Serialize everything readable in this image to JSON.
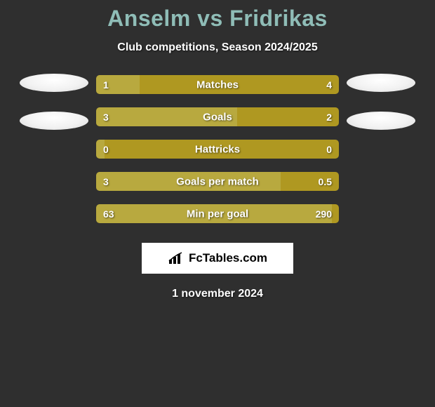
{
  "title": "Anselm vs Fridrikas",
  "subtitle": "Club competitions, Season 2024/2025",
  "footer_date": "1 november 2024",
  "branding": {
    "text": "FcTables.com",
    "icon": "bar-chart-icon"
  },
  "colors": {
    "background": "#2f2f2f",
    "title": "#8fbdb7",
    "text": "#ffffff",
    "bar_left": "#b8a93f",
    "bar_right": "#af9821",
    "oval": "#f2f2f2",
    "branding_bg": "#ffffff",
    "branding_text": "#000000"
  },
  "bars": [
    {
      "label": "Matches",
      "left_val": "1",
      "right_val": "4",
      "left_pct": 18,
      "label_center_pct": 50
    },
    {
      "label": "Goals",
      "left_val": "3",
      "right_val": "2",
      "left_pct": 58,
      "label_center_pct": 50
    },
    {
      "label": "Hattricks",
      "left_val": "0",
      "right_val": "0",
      "left_pct": 3.5,
      "label_center_pct": 50
    },
    {
      "label": "Goals per match",
      "left_val": "3",
      "right_val": "0.5",
      "left_pct": 76,
      "label_center_pct": 50
    },
    {
      "label": "Min per goal",
      "left_val": "63",
      "right_val": "290",
      "left_pct": 97,
      "label_center_pct": 50
    }
  ],
  "ovals": {
    "left_count": 2,
    "right_count": 2
  }
}
